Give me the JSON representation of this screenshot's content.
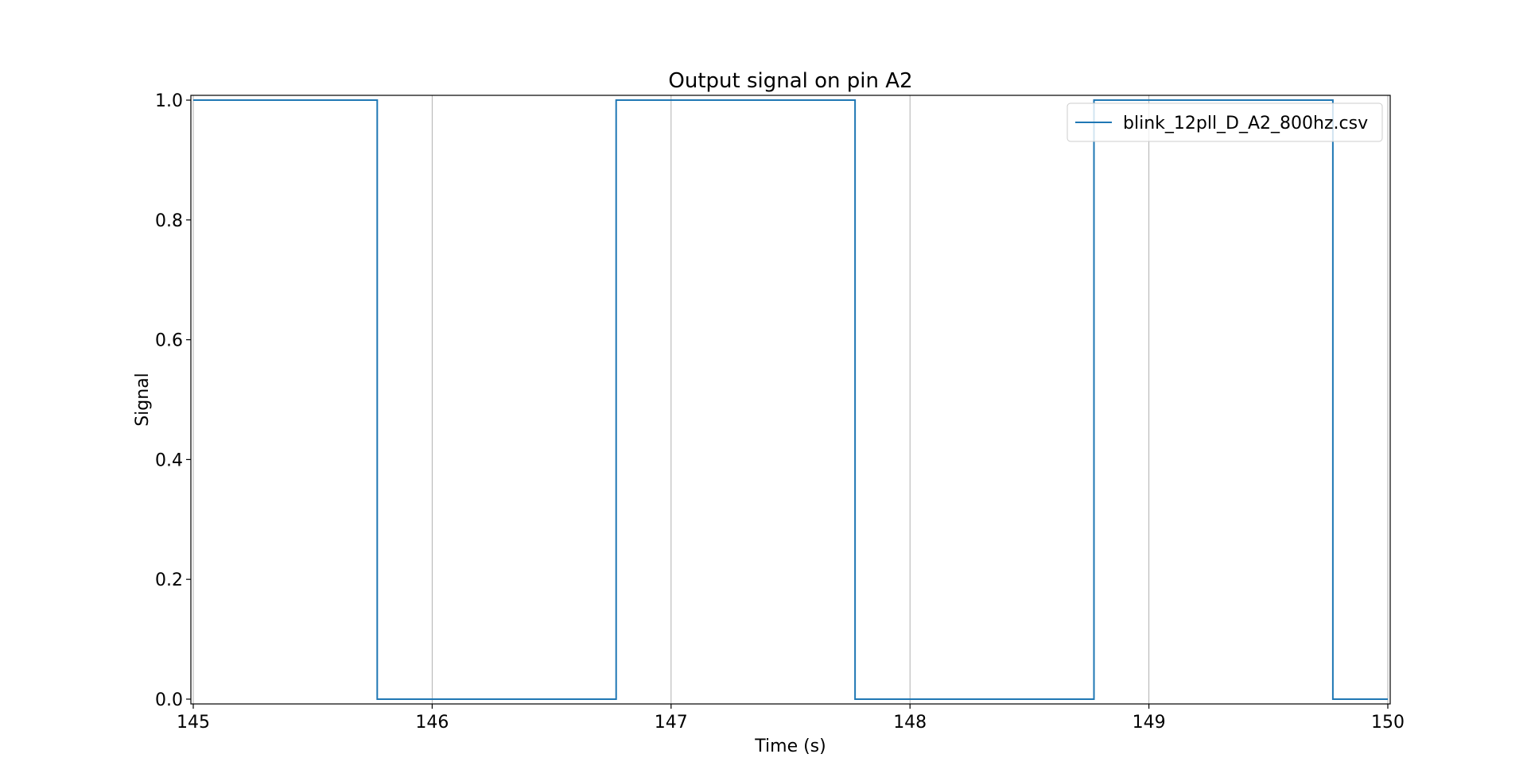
{
  "chart_data": {
    "type": "line",
    "title": "Output signal on pin A2",
    "xlabel": "Time (s)",
    "ylabel": "Signal",
    "xlim": [
      144.99,
      150.01
    ],
    "ylim": [
      -0.008,
      1.008
    ],
    "x_ticks": [
      145,
      146,
      147,
      148,
      149,
      150
    ],
    "x_tick_labels": [
      "145",
      "146",
      "147",
      "148",
      "149",
      "150"
    ],
    "y_ticks": [
      0.0,
      0.2,
      0.4,
      0.6,
      0.8,
      1.0
    ],
    "y_tick_labels": [
      "0.0",
      "0.2",
      "0.4",
      "0.6",
      "0.8",
      "1.0"
    ],
    "grid": "vertical",
    "legend_position": "top-right",
    "step": true,
    "series": [
      {
        "name": "blink_12pll_D_A2_800hz.csv",
        "color": "#1f77b4",
        "x": [
          145.0,
          145.77,
          145.77,
          146.77,
          146.77,
          147.77,
          147.77,
          148.77,
          148.77,
          149.77,
          149.77,
          150.0
        ],
        "y": [
          1,
          1,
          0,
          0,
          1,
          1,
          0,
          0,
          1,
          1,
          0,
          0
        ]
      }
    ]
  }
}
